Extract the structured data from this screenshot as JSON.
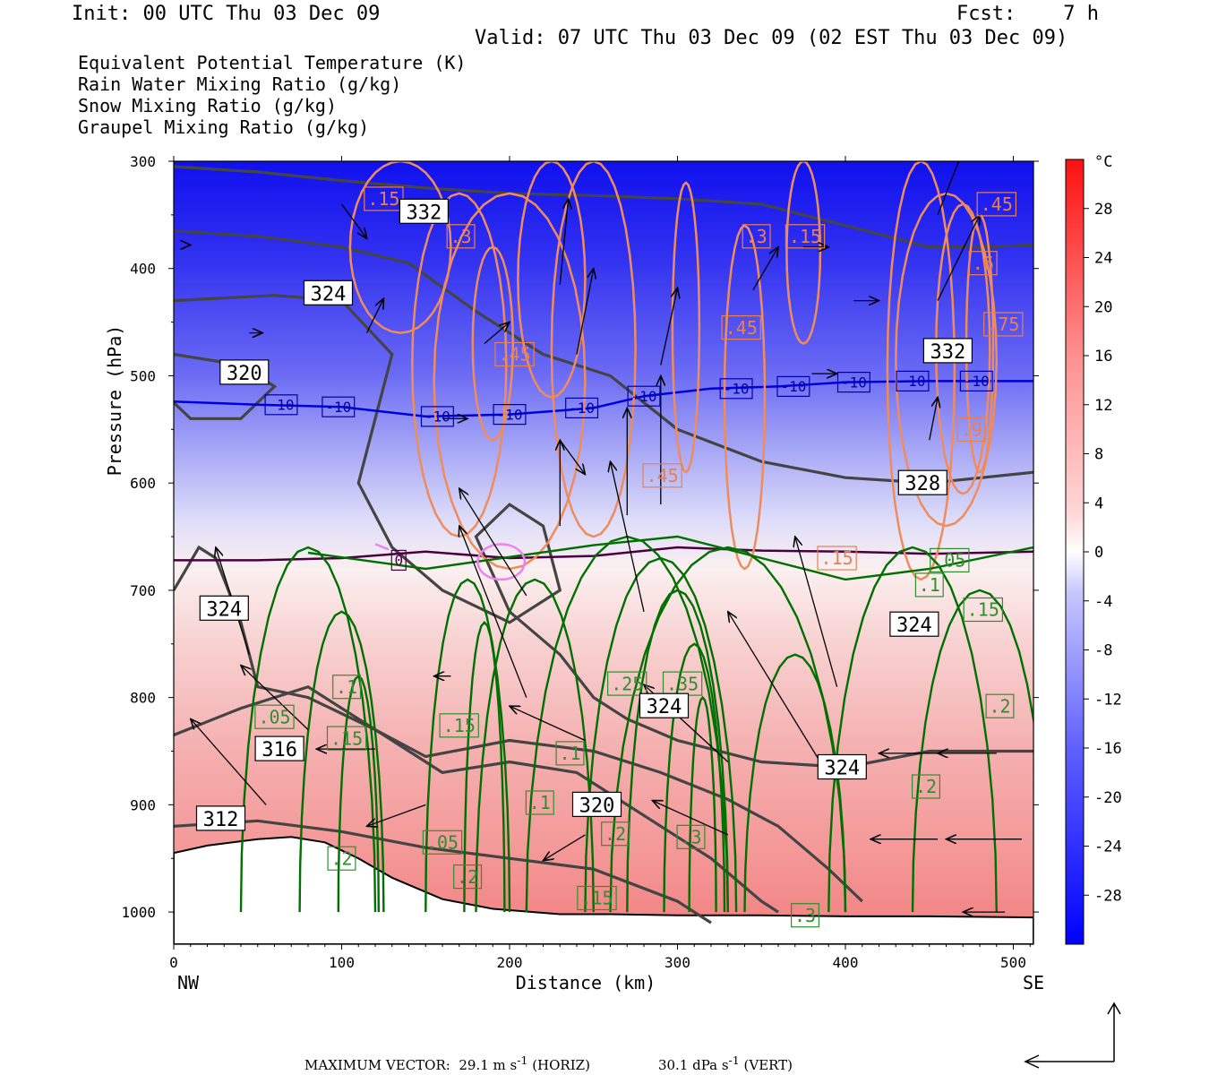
{
  "header": {
    "init": "Init: 00 UTC Thu 03 Dec 09",
    "fcst": "Fcst:    7 h",
    "valid": "Valid: 07 UTC Thu 03 Dec 09 (02 EST Thu 03 Dec 09)"
  },
  "legend": [
    {
      "label": "Equivalent Potential Temperature (K)",
      "color": "#444444"
    },
    {
      "label": "Rain Water Mixing Ratio (g/kg)",
      "color": "#007000"
    },
    {
      "label": "Snow Mixing Ratio (g/kg)",
      "color": "#f08c5c"
    },
    {
      "label": "Graupel Mixing Ratio (g/kg)",
      "color": "#ee82ee"
    }
  ],
  "footer": {
    "max_vector": "MAXIMUM VECTOR:  29.1 m s",
    "max_vector_unit": "(HORIZ)",
    "vert": "30.1 dPa s",
    "vert_unit": "(VERT)",
    "sup": "-1"
  },
  "chart_data": {
    "type": "cross-section",
    "xlabel": "Distance (km)",
    "ylabel": "Pressure (hPa)",
    "x_left_label": "NW",
    "x_right_label": "SE",
    "xlim": [
      0,
      512
    ],
    "ylim": [
      1030,
      300
    ],
    "x_ticks": [
      "0",
      "100",
      "200",
      "300",
      "400",
      "500"
    ],
    "y_ticks": [
      "300",
      "400",
      "500",
      "600",
      "700",
      "800",
      "900",
      "1000"
    ],
    "colorbar": {
      "unit": "°C",
      "range": [
        -32,
        32
      ],
      "labels": [
        "28",
        "24",
        "20",
        "16",
        "12",
        "8",
        "4",
        "0",
        "-4",
        "-8",
        "-12",
        "-16",
        "-20",
        "-24",
        "-28"
      ],
      "cold_color": "#0000ff",
      "warm_color": "#ff2020"
    },
    "theta_e_contours": [
      {
        "level": 332,
        "points": [
          [
            0,
            305
          ],
          [
            50,
            310
          ],
          [
            100,
            318
          ],
          [
            150,
            325
          ],
          [
            200,
            330
          ],
          [
            250,
            332
          ],
          [
            300,
            335
          ],
          [
            350,
            340
          ],
          [
            400,
            360
          ],
          [
            450,
            380
          ],
          [
            480,
            380
          ],
          [
            512,
            378
          ]
        ]
      },
      {
        "level": 328,
        "points": [
          [
            0,
            365
          ],
          [
            50,
            370
          ],
          [
            100,
            380
          ],
          [
            140,
            395
          ],
          [
            180,
            440
          ],
          [
            220,
            480
          ],
          [
            260,
            500
          ],
          [
            300,
            550
          ],
          [
            350,
            580
          ],
          [
            400,
            595
          ],
          [
            450,
            600
          ],
          [
            512,
            590
          ]
        ]
      },
      {
        "level": 324,
        "points": [
          [
            0,
            430
          ],
          [
            60,
            425
          ],
          [
            100,
            430
          ],
          [
            130,
            480
          ],
          [
            120,
            540
          ],
          [
            110,
            600
          ],
          [
            130,
            660
          ],
          [
            160,
            700
          ],
          [
            200,
            730
          ],
          [
            230,
            700
          ],
          [
            220,
            640
          ],
          [
            200,
            620
          ],
          [
            180,
            650
          ],
          [
            200,
            720
          ],
          [
            230,
            760
          ],
          [
            250,
            800
          ],
          [
            270,
            820
          ],
          [
            300,
            840
          ],
          [
            350,
            860
          ],
          [
            400,
            865
          ],
          [
            450,
            850
          ],
          [
            512,
            850
          ]
        ]
      },
      {
        "level": 320,
        "points": [
          [
            0,
            480
          ],
          [
            40,
            490
          ],
          [
            60,
            510
          ],
          [
            40,
            540
          ],
          [
            10,
            540
          ],
          [
            0,
            525
          ]
        ]
      },
      {
        "level": 324,
        "points": [
          [
            0,
            700
          ],
          [
            15,
            660
          ],
          [
            25,
            670
          ],
          [
            40,
            730
          ],
          [
            50,
            790
          ],
          [
            80,
            800
          ],
          [
            120,
            830
          ],
          [
            150,
            855
          ],
          [
            200,
            840
          ],
          [
            250,
            850
          ],
          [
            290,
            870
          ],
          [
            330,
            895
          ],
          [
            360,
            920
          ],
          [
            390,
            960
          ],
          [
            410,
            990
          ]
        ]
      },
      {
        "level": 316,
        "points": [
          [
            0,
            835
          ],
          [
            40,
            810
          ],
          [
            80,
            790
          ],
          [
            120,
            830
          ],
          [
            160,
            870
          ],
          [
            200,
            860
          ],
          [
            240,
            870
          ],
          [
            280,
            910
          ],
          [
            320,
            950
          ],
          [
            350,
            990
          ],
          [
            360,
            1000
          ]
        ]
      },
      {
        "level": 312,
        "points": [
          [
            0,
            920
          ],
          [
            50,
            915
          ],
          [
            100,
            925
          ],
          [
            150,
            940
          ],
          [
            200,
            950
          ],
          [
            250,
            960
          ],
          [
            300,
            990
          ],
          [
            320,
            1010
          ]
        ]
      }
    ],
    "rain_contour_labels": [
      {
        "x": 60,
        "p": 818,
        "v": ".05"
      },
      {
        "x": 103,
        "p": 790,
        "v": ".1"
      },
      {
        "x": 103,
        "p": 838,
        "v": ".15"
      },
      {
        "x": 100,
        "p": 950,
        "v": ".2"
      },
      {
        "x": 160,
        "p": 935,
        "v": ".05"
      },
      {
        "x": 170,
        "p": 826,
        "v": ".15"
      },
      {
        "x": 175,
        "p": 967,
        "v": ".2"
      },
      {
        "x": 236,
        "p": 852,
        "v": ".1"
      },
      {
        "x": 218,
        "p": 898,
        "v": ".1"
      },
      {
        "x": 263,
        "p": 927,
        "v": ".2"
      },
      {
        "x": 270,
        "p": 787,
        "v": ".25"
      },
      {
        "x": 303,
        "p": 787,
        "v": ".35"
      },
      {
        "x": 308,
        "p": 930,
        "v": ".3"
      },
      {
        "x": 252,
        "p": 987,
        "v": ".15"
      },
      {
        "x": 376,
        "p": 1003,
        "v": ".3"
      },
      {
        "x": 450,
        "p": 695,
        "v": ".1"
      },
      {
        "x": 482,
        "p": 718,
        "v": ".15"
      },
      {
        "x": 492,
        "p": 808,
        "v": ".2"
      },
      {
        "x": 448,
        "p": 883,
        "v": ".2"
      },
      {
        "x": 462,
        "p": 672,
        "v": ".05"
      }
    ],
    "snow_contour_labels": [
      {
        "x": 125,
        "p": 335,
        "v": ".15"
      },
      {
        "x": 171,
        "p": 370,
        "v": ".3"
      },
      {
        "x": 203,
        "p": 480,
        "v": ".45"
      },
      {
        "x": 347,
        "p": 370,
        "v": ".3"
      },
      {
        "x": 376,
        "p": 370,
        "v": ".15"
      },
      {
        "x": 338,
        "p": 455,
        "v": ".45"
      },
      {
        "x": 291,
        "p": 593,
        "v": ".45"
      },
      {
        "x": 395,
        "p": 670,
        "v": ".15"
      },
      {
        "x": 490,
        "p": 340,
        "v": ".45"
      },
      {
        "x": 482,
        "p": 395,
        "v": ".6"
      },
      {
        "x": 494,
        "p": 452,
        "v": ".75"
      },
      {
        "x": 475,
        "p": 550,
        "v": ".9"
      }
    ],
    "isotherm_labels": [
      {
        "x": 64,
        "p": 527,
        "v": "-10"
      },
      {
        "x": 98,
        "p": 529,
        "v": "-10"
      },
      {
        "x": 157,
        "p": 538,
        "v": "-10"
      },
      {
        "x": 200,
        "p": 536,
        "v": "-10"
      },
      {
        "x": 243,
        "p": 530,
        "v": "-10"
      },
      {
        "x": 280,
        "p": 519,
        "v": "-10"
      },
      {
        "x": 335,
        "p": 512,
        "v": "-10"
      },
      {
        "x": 369,
        "p": 510,
        "v": "-10"
      },
      {
        "x": 405,
        "p": 506,
        "v": "-10"
      },
      {
        "x": 440,
        "p": 505,
        "v": "-10"
      },
      {
        "x": 478,
        "p": 505,
        "v": "-10"
      },
      {
        "x": 134,
        "p": 672,
        "v": "0"
      }
    ],
    "theta_e_labels": [
      {
        "x": 149,
        "p": 347,
        "v": "332"
      },
      {
        "x": 92,
        "p": 423,
        "v": "324"
      },
      {
        "x": 42,
        "p": 497,
        "v": "320"
      },
      {
        "x": 30,
        "p": 717,
        "v": "324"
      },
      {
        "x": 63,
        "p": 848,
        "v": "316"
      },
      {
        "x": 28,
        "p": 913,
        "v": "312"
      },
      {
        "x": 252,
        "p": 900,
        "v": "320"
      },
      {
        "x": 292,
        "p": 808,
        "v": "324"
      },
      {
        "x": 398,
        "p": 865,
        "v": "324"
      },
      {
        "x": 441,
        "p": 732,
        "v": "324"
      },
      {
        "x": 446,
        "p": 600,
        "v": "328"
      },
      {
        "x": 461,
        "p": 477,
        "v": "332"
      }
    ]
  }
}
